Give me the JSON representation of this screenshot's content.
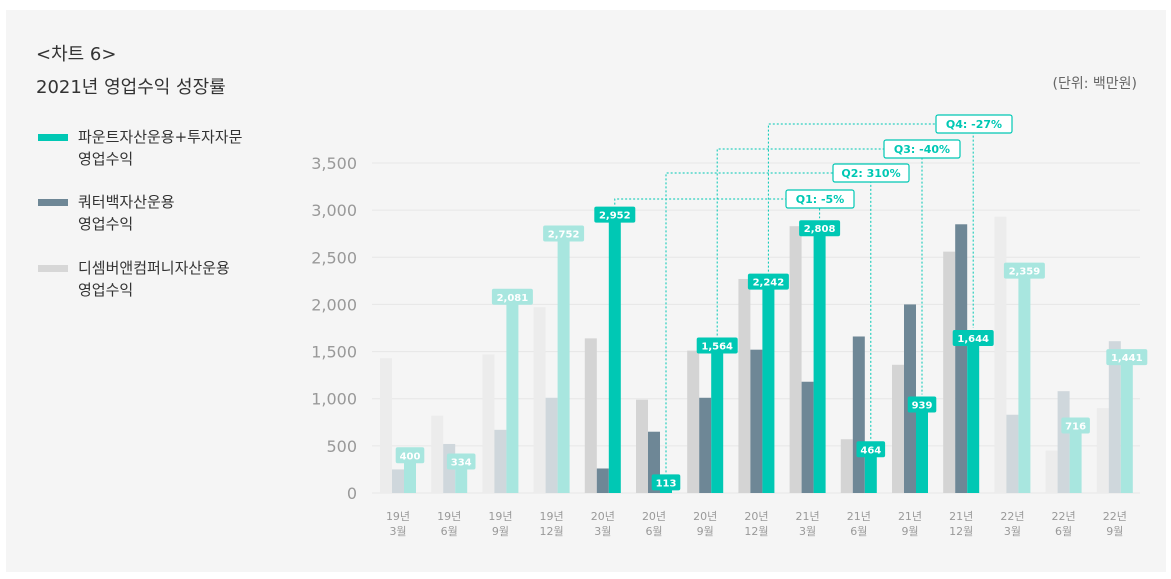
{
  "header": {
    "chart_number": "<차트 6>",
    "title": "2021년 영업수익 성장률",
    "unit": "(단위: 백만원)"
  },
  "legend": [
    {
      "line1": "파운트자산운용+투자자문",
      "line2": "영업수익",
      "color": "#00c8b4"
    },
    {
      "line1": "쿼터백자산운용",
      "line2": "영업수익",
      "color": "#6e8796"
    },
    {
      "line1": "디셈버앤컴퍼니자산운용",
      "line2": "영업수익",
      "color": "#d7d7d7"
    }
  ],
  "colors": {
    "fount": "#00c8b4",
    "fount_faded": "#a8e6df",
    "quarter": "#6e8796",
    "quarter_faded": "#cfd7dc",
    "december": "#d4d4d4",
    "december_faded": "#ececec",
    "axis_text": "#999999",
    "grid": "#e6e6e6"
  },
  "chart_data": {
    "type": "bar",
    "title": "2021년 영업수익 성장률",
    "ylabel": "백만원",
    "ylim": [
      0,
      3500
    ],
    "yticks": [
      {
        "value": 0,
        "label": "0"
      },
      {
        "value": 500,
        "label": "500"
      },
      {
        "value": 1000,
        "label": "1,000"
      },
      {
        "value": 1500,
        "label": "1,500"
      },
      {
        "value": 2000,
        "label": "2,000"
      },
      {
        "value": 2500,
        "label": "2,500"
      },
      {
        "value": 3000,
        "label": "3,000"
      },
      {
        "value": 3500,
        "label": "3,500"
      }
    ],
    "categories": [
      {
        "line1": "19년",
        "line2": "3월"
      },
      {
        "line1": "19년",
        "line2": "6월"
      },
      {
        "line1": "19년",
        "line2": "9월"
      },
      {
        "line1": "19년",
        "line2": "12월"
      },
      {
        "line1": "20년",
        "line2": "3월"
      },
      {
        "line1": "20년",
        "line2": "6월"
      },
      {
        "line1": "20년",
        "line2": "9월"
      },
      {
        "line1": "20년",
        "line2": "12월"
      },
      {
        "line1": "21년",
        "line2": "3월"
      },
      {
        "line1": "21년",
        "line2": "6월"
      },
      {
        "line1": "21년",
        "line2": "9월"
      },
      {
        "line1": "21년",
        "line2": "12월"
      },
      {
        "line1": "22년",
        "line2": "3월"
      },
      {
        "line1": "22년",
        "line2": "6월"
      },
      {
        "line1": "22년",
        "line2": "9월"
      }
    ],
    "highlighted": [
      false,
      false,
      false,
      false,
      true,
      true,
      true,
      true,
      true,
      true,
      true,
      true,
      false,
      false,
      false
    ],
    "series": [
      {
        "name": "디셈버앤컴퍼니자산운용 영업수익",
        "key": "december",
        "values": [
          1430,
          820,
          1470,
          1970,
          1640,
          990,
          1510,
          2270,
          2830,
          570,
          1360,
          2560,
          2930,
          450,
          900
        ]
      },
      {
        "name": "쿼터백자산운용 영업수익",
        "key": "quarter",
        "values": [
          250,
          520,
          670,
          1010,
          260,
          650,
          1010,
          1520,
          1180,
          1660,
          2000,
          2850,
          830,
          1080,
          1610
        ]
      },
      {
        "name": "파운트자산운용+투자자문 영업수익",
        "key": "fount",
        "values": [
          400,
          334,
          2081,
          2752,
          2952,
          113,
          1564,
          2242,
          2808,
          464,
          939,
          1644,
          2359,
          716,
          1441
        ],
        "labels": [
          "400",
          "334",
          "2,081",
          "2,752",
          "2,952",
          "113",
          "1,564",
          "2,242",
          "2,808",
          "464",
          "939",
          "1,644",
          "2,359",
          "716",
          "1,441"
        ]
      }
    ],
    "annotations": [
      {
        "label": "Q1: -5%",
        "from": 4,
        "to": 8
      },
      {
        "label": "Q2: 310%",
        "from": 5,
        "to": 9
      },
      {
        "label": "Q3: -40%",
        "from": 6,
        "to": 10
      },
      {
        "label": "Q4: -27%",
        "from": 7,
        "to": 11
      }
    ]
  }
}
